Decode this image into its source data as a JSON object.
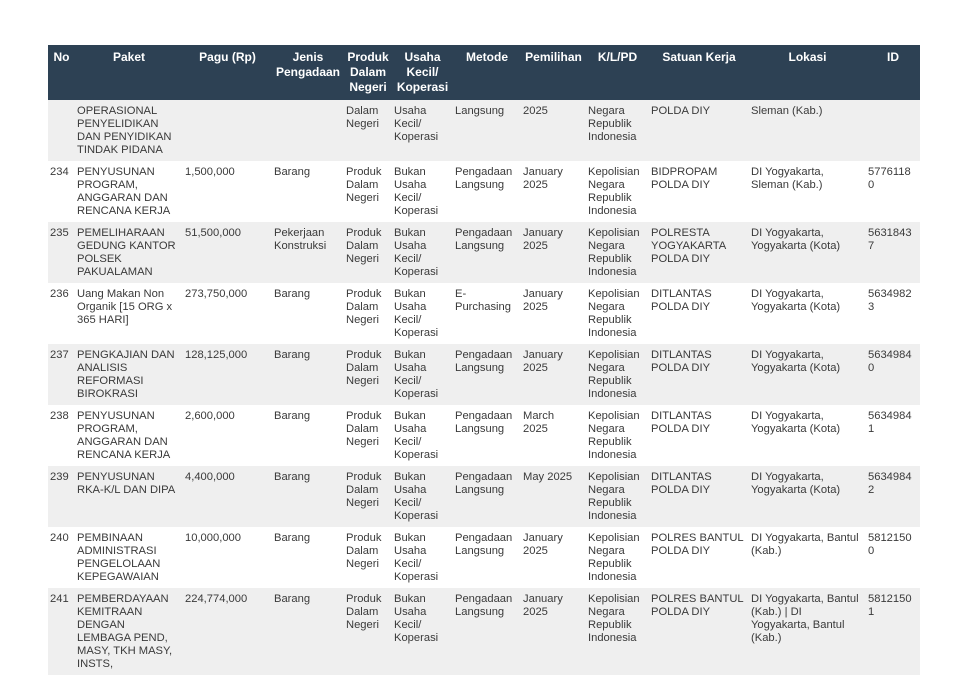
{
  "colors": {
    "header_bg": "#2d4154",
    "header_text": "#ffffff",
    "stripe": "#efefef",
    "row_bg": "#ffffff",
    "text": "#3a3a3a",
    "page_bg": "#ffffff"
  },
  "table": {
    "columns": [
      {
        "key": "no",
        "label": "No"
      },
      {
        "key": "paket",
        "label": "Paket"
      },
      {
        "key": "pagu",
        "label": "Pagu (Rp)"
      },
      {
        "key": "jenis-pengadaan",
        "label": "Jenis Pengadaan"
      },
      {
        "key": "produk-dalam-negeri",
        "label": "Produk Dalam Negeri"
      },
      {
        "key": "usaha-kecil-koperasi",
        "label": "Usaha Kecil/ Koperasi"
      },
      {
        "key": "metode",
        "label": "Metode"
      },
      {
        "key": "pemilihan",
        "label": "Pemilihan"
      },
      {
        "key": "klpd",
        "label": "K/L/PD"
      },
      {
        "key": "satuan-kerja",
        "label": "Satuan Kerja"
      },
      {
        "key": "lokasi",
        "label": "Lokasi"
      },
      {
        "key": "id",
        "label": "ID"
      }
    ],
    "rows": [
      [
        "",
        "OPERASIONAL PENYELIDIKAN DAN PENYIDIKAN TINDAK PIDANA",
        "",
        "",
        "Dalam Negeri",
        "Usaha Kecil/ Koperasi",
        "Langsung",
        "2025",
        "Negara Republik Indonesia",
        "POLDA DIY",
        "Sleman (Kab.)",
        ""
      ],
      [
        "234",
        "PENYUSUNAN PROGRAM, ANGGARAN DAN RENCANA KERJA",
        "1,500,000",
        "Barang",
        "Produk Dalam Negeri",
        "Bukan Usaha Kecil/ Koperasi",
        "Pengadaan Langsung",
        "January 2025",
        "Kepolisian Negara Republik Indonesia",
        "BIDPROPAM POLDA DIY",
        "DI Yogyakarta, Sleman (Kab.)",
        "57761180"
      ],
      [
        "235",
        "PEMELIHARAAN GEDUNG KANTOR POLSEK PAKUALAMAN",
        "51,500,000",
        "Pekerjaan Konstruksi",
        "Produk Dalam Negeri",
        "Bukan Usaha Kecil/ Koperasi",
        "Pengadaan Langsung",
        "January 2025",
        "Kepolisian Negara Republik Indonesia",
        "POLRESTA YOGYAKARTA POLDA DIY",
        "DI Yogyakarta, Yogyakarta (Kota)",
        "56318437"
      ],
      [
        "236",
        "Uang Makan Non Organik [15 ORG x 365 HARI]",
        "273,750,000",
        "Barang",
        "Produk Dalam Negeri",
        "Bukan Usaha Kecil/ Koperasi",
        "E-Purchasing",
        "January 2025",
        "Kepolisian Negara Republik Indonesia",
        "DITLANTAS POLDA DIY",
        "DI Yogyakarta, Yogyakarta (Kota)",
        "56349823"
      ],
      [
        "237",
        "PENGKAJIAN DAN ANALISIS REFORMASI BIROKRASI",
        "128,125,000",
        "Barang",
        "Produk Dalam Negeri",
        "Bukan Usaha Kecil/ Koperasi",
        "Pengadaan Langsung",
        "January 2025",
        "Kepolisian Negara Republik Indonesia",
        "DITLANTAS POLDA DIY",
        "DI Yogyakarta, Yogyakarta (Kota)",
        "56349840"
      ],
      [
        "238",
        "PENYUSUNAN PROGRAM, ANGGARAN DAN RENCANA KERJA",
        "2,600,000",
        "Barang",
        "Produk Dalam Negeri",
        "Bukan Usaha Kecil/ Koperasi",
        "Pengadaan Langsung",
        "March 2025",
        "Kepolisian Negara Republik Indonesia",
        "DITLANTAS POLDA DIY",
        "DI Yogyakarta, Yogyakarta (Kota)",
        "56349841"
      ],
      [
        "239",
        "PENYUSUNAN RKA-K/L DAN DIPA",
        "4,400,000",
        "Barang",
        "Produk Dalam Negeri",
        "Bukan Usaha Kecil/ Koperasi",
        "Pengadaan Langsung",
        "May 2025",
        "Kepolisian Negara Republik Indonesia",
        "DITLANTAS POLDA DIY",
        "DI Yogyakarta, Yogyakarta (Kota)",
        "56349842"
      ],
      [
        "240",
        "PEMBINAAN ADMINISTRASI PENGELOLAAN KEPEGAWAIAN",
        "10,000,000",
        "Barang",
        "Produk Dalam Negeri",
        "Bukan Usaha Kecil/ Koperasi",
        "Pengadaan Langsung",
        "January 2025",
        "Kepolisian Negara Republik Indonesia",
        "POLRES BANTUL POLDA DIY",
        "DI Yogyakarta, Bantul (Kab.)",
        "58121500"
      ],
      [
        "241",
        "PEMBERDAYAAN KEMITRAAN DENGAN LEMBAGA PEND, MASY, TKH MASY, INSTS,",
        "224,774,000",
        "Barang",
        "Produk Dalam Negeri",
        "Bukan Usaha Kecil/ Koperasi",
        "Pengadaan Langsung",
        "January 2025",
        "Kepolisian Negara Republik Indonesia",
        "POLRES BANTUL POLDA DIY",
        "DI Yogyakarta, Bantul (Kab.) | DI Yogyakarta, Bantul (Kab.)",
        "58121501"
      ]
    ]
  }
}
